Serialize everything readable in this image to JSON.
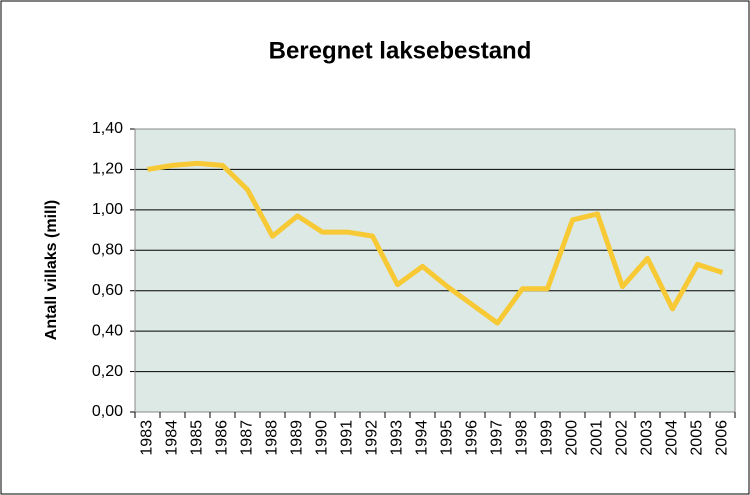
{
  "chart_data": {
    "type": "line",
    "title": "Beregnet laksebestand",
    "y_label": "Antall villaks  (mill)",
    "categories": [
      "1983",
      "1984",
      "1985",
      "1986",
      "1987",
      "1988",
      "1989",
      "1990",
      "1991",
      "1992",
      "1993",
      "1994",
      "1995",
      "1996",
      "1997",
      "1998",
      "1999",
      "2000",
      "2001",
      "2002",
      "2003",
      "2004",
      "2005",
      "2006"
    ],
    "values": [
      1.2,
      1.22,
      1.23,
      1.22,
      1.1,
      0.87,
      0.97,
      0.89,
      0.89,
      0.87,
      0.63,
      0.72,
      0.62,
      0.53,
      0.44,
      0.61,
      0.61,
      0.95,
      0.98,
      0.62,
      0.76,
      0.51,
      0.73,
      0.69
    ],
    "color": "#f7c935",
    "ylim": [
      0,
      1.4
    ],
    "yticks": [
      {
        "value": 0,
        "label": "0,00"
      },
      {
        "value": 0.2,
        "label": "0,20"
      },
      {
        "value": 0.4,
        "label": "0,40"
      },
      {
        "value": 0.6,
        "label": "0,60"
      },
      {
        "value": 0.8,
        "label": "0,80"
      },
      {
        "value": 1.0,
        "label": "1,00"
      },
      {
        "value": 1.2,
        "label": "1,20"
      },
      {
        "value": 1.4,
        "label": "1,40"
      }
    ],
    "grid": true
  }
}
